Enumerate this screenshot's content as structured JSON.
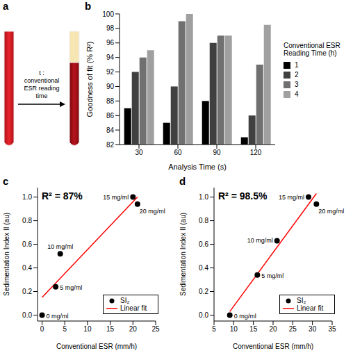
{
  "diagram": {
    "panel": "a",
    "label": "t : conventional ESR reading time"
  },
  "chart_data": [
    {
      "panel": "b",
      "type": "bar",
      "x_label": "Analysis Time (s)",
      "y_label": "Goodness of fit (% R²)",
      "legend_title": "Conventional ESR Reading Time (h)",
      "categories": [
        "30",
        "60",
        "90",
        "120"
      ],
      "series": [
        {
          "name": "1",
          "color": "#000000",
          "values": [
            87,
            85,
            88,
            83
          ]
        },
        {
          "name": "2",
          "color": "#404040",
          "values": [
            92,
            90,
            96,
            86
          ]
        },
        {
          "name": "3",
          "color": "#707070",
          "values": [
            94,
            99,
            97,
            93
          ]
        },
        {
          "name": "4",
          "color": "#a0a0a0",
          "values": [
            95,
            100,
            97,
            98.5
          ]
        }
      ],
      "ylim": [
        82,
        100
      ],
      "yticks": [
        82,
        84,
        86,
        88,
        90,
        92,
        94,
        96,
        98,
        100
      ],
      "legend": "right"
    },
    {
      "panel": "c",
      "type": "scatter",
      "annotation": "R² = 87%",
      "x_label": "Conventional ESR (mm/h)",
      "y_label": "Sedimentation Index II (au)",
      "series": [
        {
          "name": "SI₂",
          "type": "scatter",
          "color": "#000000",
          "marker": "circle",
          "x": [
            0,
            3,
            4,
            20,
            21
          ],
          "values": [
            0,
            0.24,
            0.52,
            1.0,
            0.94
          ],
          "point_labels": [
            "0 mg/ml",
            "5 mg/ml",
            "10 mg/ml",
            "15 mg/ml",
            "20 mg/ml"
          ]
        },
        {
          "name": "Linear fit",
          "type": "line",
          "color": "#ff0000",
          "x": [
            0,
            21
          ],
          "values": [
            0.15,
            1.0
          ]
        }
      ],
      "xlim": [
        -1,
        25
      ],
      "xticks": [
        0,
        5,
        10,
        15,
        20,
        25
      ],
      "ylim": [
        -0.05,
        1.08
      ],
      "yticks": [
        {
          "value": 0,
          "label": "0.0"
        },
        {
          "value": 0.2,
          "label": "0.2"
        },
        {
          "value": 0.4,
          "label": "0.4"
        },
        {
          "value": 0.6,
          "label": "0.6"
        },
        {
          "value": 0.8,
          "label": "0.8"
        },
        {
          "value": 1,
          "label": "1.0"
        }
      ],
      "legend": "lower right"
    },
    {
      "panel": "d",
      "type": "scatter",
      "annotation": "R² = 98.5%",
      "x_label": "Conventional ESR (mm/h)",
      "y_label": "Sedimentation Index II (au)",
      "series": [
        {
          "name": "SI₂",
          "type": "scatter",
          "color": "#000000",
          "marker": "circle",
          "x": [
            9,
            16,
            21,
            29,
            31
          ],
          "values": [
            0,
            0.34,
            0.63,
            1.0,
            0.94
          ],
          "point_labels": [
            "0 mg/ml",
            "5 mg/ml",
            "10 mg/ml",
            "15 mg/ml",
            "20 mg/ml"
          ]
        },
        {
          "name": "Linear fit",
          "type": "line",
          "color": "#ff0000",
          "x": [
            9,
            31
          ],
          "values": [
            0.03,
            1.03
          ]
        }
      ],
      "xlim": [
        5,
        35
      ],
      "xticks": [
        5,
        10,
        15,
        20,
        25,
        30,
        35
      ],
      "ylim": [
        -0.05,
        1.08
      ],
      "yticks": [
        {
          "value": 0,
          "label": "0.0"
        },
        {
          "value": 0.2,
          "label": "0.2"
        },
        {
          "value": 0.4,
          "label": "0.4"
        },
        {
          "value": 0.6,
          "label": "0.6"
        },
        {
          "value": 0.8,
          "label": "0.8"
        },
        {
          "value": 1,
          "label": "1.0"
        }
      ],
      "legend": "lower right"
    }
  ]
}
